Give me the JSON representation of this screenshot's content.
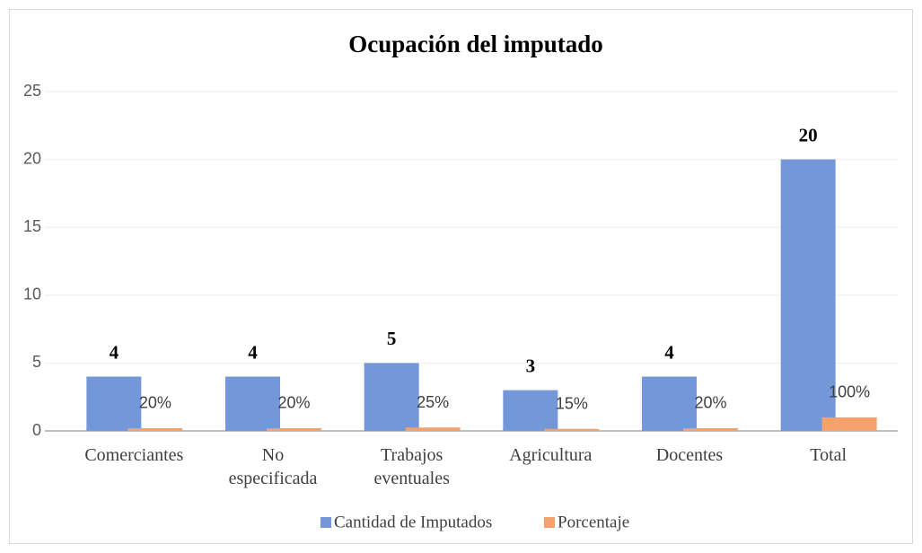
{
  "chart_data": {
    "type": "bar",
    "title": "Ocupación del imputado",
    "categories": [
      "Comerciantes",
      "No especificada",
      "Trabajos eventuales",
      "Agricultura",
      "Docentes",
      "Total"
    ],
    "series": [
      {
        "name": "Cantidad de Imputados",
        "color": "#7397d8",
        "values": [
          4,
          4,
          5,
          3,
          4,
          20
        ]
      },
      {
        "name": "Porcentaje",
        "color": "#f4a16c",
        "values": [
          0.2,
          0.2,
          0.25,
          0.15,
          0.2,
          1
        ],
        "value_labels": [
          "20%",
          "20%",
          "25%",
          "15%",
          "20%",
          "100%"
        ]
      }
    ],
    "ylim": [
      0,
      25
    ],
    "yticks": [
      0,
      5,
      10,
      15,
      20,
      25
    ],
    "grid": true,
    "legend": "bottom"
  }
}
